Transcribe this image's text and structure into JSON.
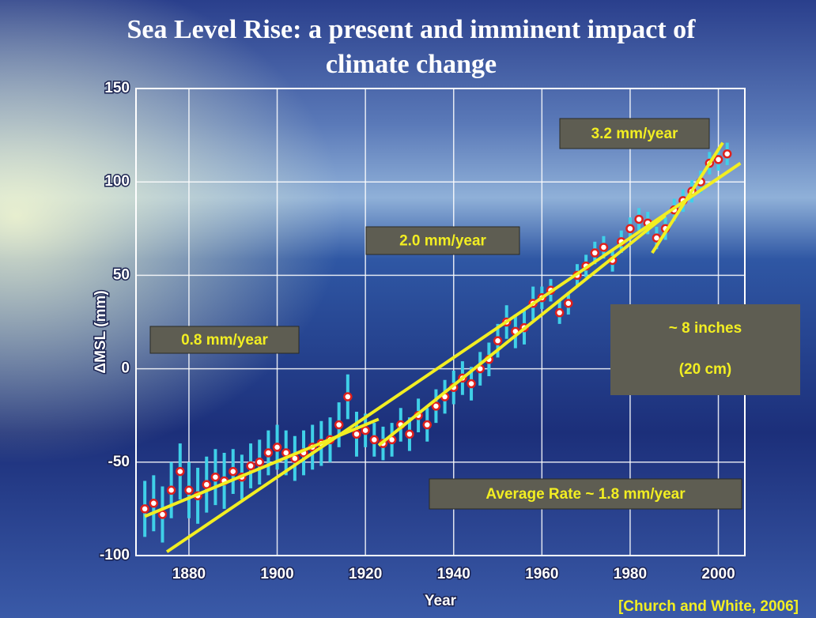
{
  "chart_data": {
    "type": "errorbar",
    "title": [
      "Sea Level Rise: a present and imminent impact of",
      "climate change"
    ],
    "x_label": "Year",
    "y_label": "ΔMSL (mm)",
    "xlim": [
      1868,
      2006
    ],
    "ylim": [
      -100,
      150
    ],
    "xticks": [
      1880,
      1900,
      1920,
      1940,
      1960,
      1980,
      2000
    ],
    "yticks": [
      -100,
      -50,
      0,
      50,
      100,
      150
    ],
    "grid": true,
    "point_color": "#e0201c",
    "error_color": "#3fd0e8",
    "trend_color": "#f2ee22",
    "x": [
      1870,
      1872,
      1874,
      1876,
      1878,
      1880,
      1882,
      1884,
      1886,
      1888,
      1890,
      1892,
      1894,
      1896,
      1898,
      1900,
      1902,
      1904,
      1906,
      1908,
      1910,
      1912,
      1914,
      1916,
      1918,
      1920,
      1922,
      1924,
      1926,
      1928,
      1930,
      1932,
      1934,
      1936,
      1938,
      1940,
      1942,
      1944,
      1946,
      1948,
      1950,
      1952,
      1954,
      1956,
      1958,
      1960,
      1962,
      1964,
      1966,
      1968,
      1970,
      1972,
      1974,
      1976,
      1978,
      1980,
      1982,
      1984,
      1986,
      1988,
      1990,
      1992,
      1994,
      1996,
      1998,
      2000,
      2002
    ],
    "values": [
      -75,
      -72,
      -78,
      -65,
      -55,
      -65,
      -68,
      -62,
      -58,
      -60,
      -55,
      -58,
      -52,
      -50,
      -45,
      -42,
      -45,
      -48,
      -45,
      -42,
      -40,
      -38,
      -30,
      -15,
      -35,
      -33,
      -38,
      -40,
      -38,
      -30,
      -35,
      -25,
      -30,
      -20,
      -15,
      -10,
      -5,
      -8,
      0,
      5,
      15,
      25,
      20,
      22,
      35,
      38,
      42,
      30,
      35,
      50,
      55,
      62,
      65,
      58,
      68,
      75,
      80,
      78,
      70,
      75,
      85,
      90,
      95,
      100,
      110,
      112,
      115
    ],
    "errors": [
      15,
      15,
      15,
      15,
      15,
      15,
      15,
      15,
      15,
      15,
      12,
      12,
      12,
      12,
      12,
      12,
      12,
      12,
      12,
      12,
      12,
      12,
      12,
      12,
      12,
      9,
      9,
      9,
      9,
      9,
      9,
      9,
      9,
      9,
      9,
      9,
      9,
      9,
      9,
      9,
      9,
      9,
      9,
      9,
      9,
      6,
      6,
      6,
      6,
      6,
      6,
      6,
      6,
      6,
      6,
      6,
      6,
      6,
      6,
      6,
      6,
      6,
      6,
      6,
      6,
      6,
      6
    ],
    "trends": [
      {
        "label": "0.8 mm/year",
        "x": [
          1870,
          1923
        ],
        "y": [
          -79,
          -27
        ]
      },
      {
        "label": "Average Rate ~ 1.8 mm/year",
        "x": [
          1875,
          2005
        ],
        "y": [
          -98,
          110
        ]
      },
      {
        "label": "2.0 mm/year",
        "x": [
          1923,
          1988
        ],
        "y": [
          -41,
          82
        ]
      },
      {
        "label": "3.2 mm/year",
        "x": [
          1985,
          2001
        ],
        "y": [
          62,
          121
        ]
      }
    ],
    "annotation": [
      "~ 8 inches",
      "(20 cm)"
    ],
    "source": "[Church and White, 2006]"
  }
}
